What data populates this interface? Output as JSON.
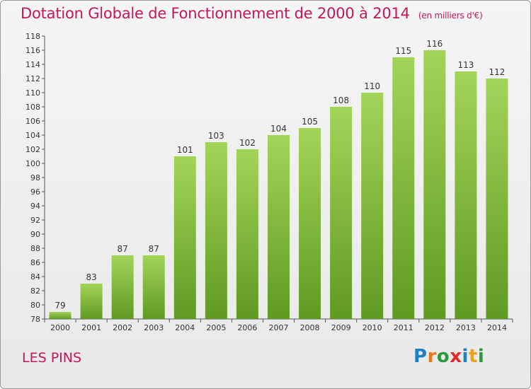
{
  "header": {
    "title": "Dotation Globale de Fonctionnement de 2000 à 2014",
    "unit": "(en milliers d'€)"
  },
  "footer": {
    "commune": "LES PINS",
    "logo": "Proxiti"
  },
  "colors": {
    "title": "#c2185b",
    "bar_light": "#a6d65a",
    "bar_dark": "#6aa62a",
    "axis": "#555555",
    "grid": "#cccccc"
  },
  "chart_data": {
    "type": "bar",
    "title": "Dotation Globale de Fonctionnement de 2000 à 2014",
    "subtitle": "(en milliers d'€)",
    "xlabel": "",
    "ylabel": "",
    "categories": [
      "2000",
      "2001",
      "2002",
      "2003",
      "2004",
      "2005",
      "2006",
      "2007",
      "2008",
      "2009",
      "2010",
      "2011",
      "2012",
      "2013",
      "2014"
    ],
    "values": [
      79,
      83,
      87,
      87,
      101,
      103,
      102,
      104,
      105,
      108,
      110,
      115,
      116,
      113,
      112
    ],
    "ylim": [
      78,
      118
    ],
    "yticks": [
      78,
      80,
      82,
      84,
      86,
      88,
      90,
      92,
      94,
      96,
      98,
      100,
      102,
      104,
      106,
      108,
      110,
      112,
      114,
      116,
      118
    ],
    "grid": false,
    "data_labels": true
  }
}
